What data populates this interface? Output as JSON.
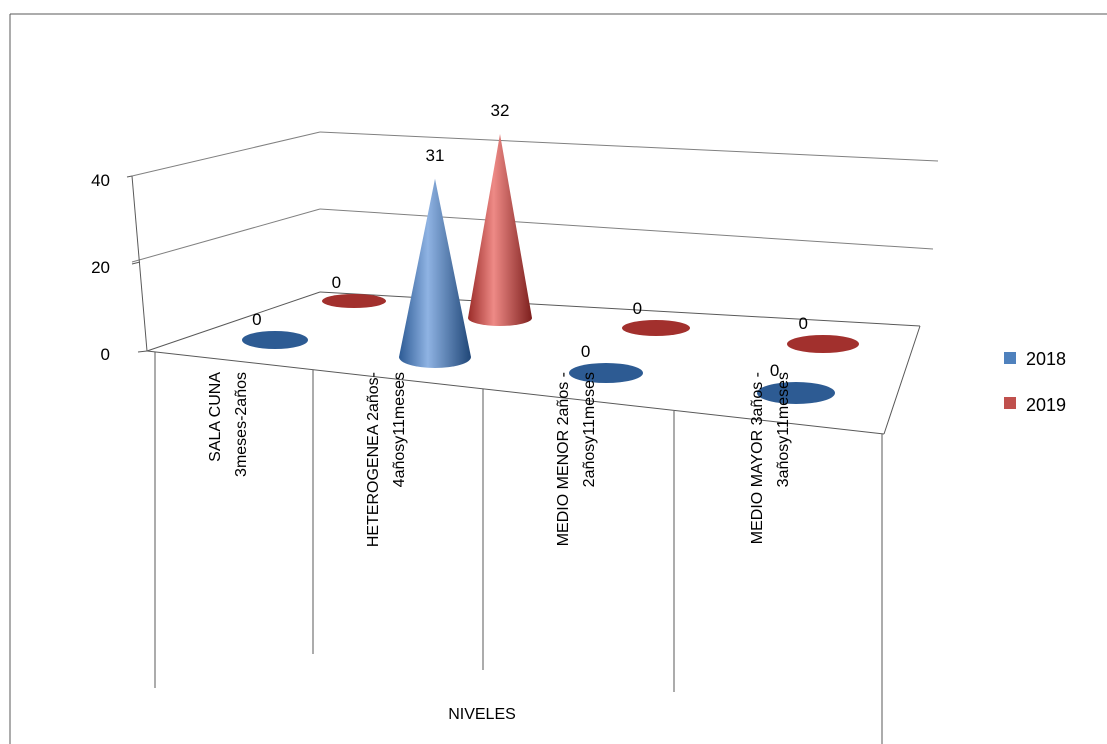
{
  "chart_data": {
    "type": "bar",
    "subtype": "3d-cone",
    "title": "",
    "xlabel": "NIVELES",
    "ylabel": "",
    "ylim": [
      0,
      40
    ],
    "yticks": [
      "0",
      "20",
      "40"
    ],
    "categories": [
      [
        "SALA CUNA",
        "3meses-2años"
      ],
      [
        "HETEROGENEA      2años-",
        "4añosy11meses"
      ],
      [
        "MEDIO MENOR     2años -",
        "2añosy11meses"
      ],
      [
        "MEDIO MAYOR      3años -",
        "3añosy11meses"
      ]
    ],
    "series": [
      {
        "name": "2018",
        "values": [
          0,
          31,
          0,
          0
        ],
        "color": "#4f81bd"
      },
      {
        "name": "2019",
        "values": [
          0,
          32,
          0,
          0
        ],
        "color": "#c0504d"
      }
    ],
    "legend_position": "right",
    "grid": true
  }
}
